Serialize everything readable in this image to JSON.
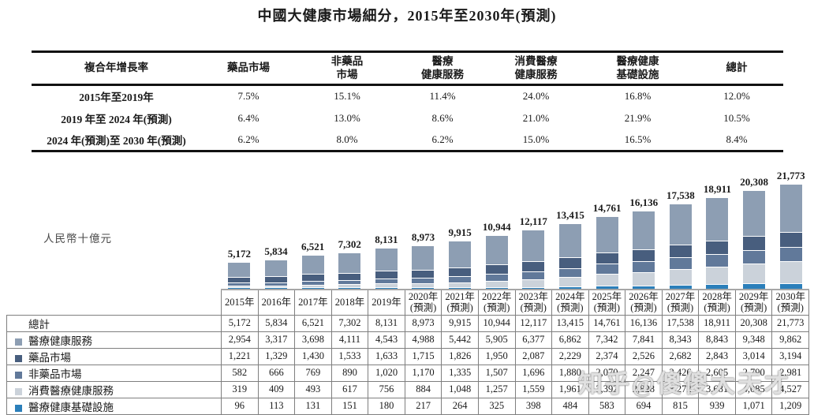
{
  "title": "中國大健康市場細分，2015年至2030年(預測)",
  "watermark": "知乎@傻傻大天才",
  "cagr_table": {
    "headers": [
      "複合年增長率",
      "藥品市場",
      "非藥品\n市場",
      "醫療\n健康服務",
      "消費醫療\n健康服務",
      "醫療健康\n基礎設施",
      "總計"
    ],
    "rows": [
      {
        "label": "2015年至2019年",
        "values": [
          "7.5%",
          "15.1%",
          "11.4%",
          "24.0%",
          "16.8%",
          "12.0%"
        ]
      },
      {
        "label": "2019 年至 2024 年(預測)",
        "values": [
          "6.4%",
          "13.0%",
          "8.6%",
          "21.0%",
          "21.9%",
          "10.5%"
        ]
      },
      {
        "label": "2024 年(預測)至 2030 年(預測)",
        "values": [
          "6.2%",
          "8.0%",
          "6.2%",
          "15.0%",
          "16.5%",
          "8.4%"
        ]
      }
    ]
  },
  "chart_data": {
    "type": "bar",
    "stacked": true,
    "unit_label": "人民幣十億元",
    "total_label": "總計",
    "categories": [
      "2015年",
      "2016年",
      "2017年",
      "2018年",
      "2019年",
      "2020年\n(預測)",
      "2021年\n(預測)",
      "2022年\n(預測)",
      "2023年\n(預測)",
      "2024年\n(預測)",
      "2025年\n(預測)",
      "2026年\n(預測)",
      "2027年\n(預測)",
      "2028年\n(預測)",
      "2029年\n(預測)",
      "2030年\n(預測)"
    ],
    "totals": [
      5172,
      5834,
      6521,
      7302,
      8131,
      8973,
      9915,
      10944,
      12117,
      13415,
      14761,
      16136,
      17538,
      18911,
      20308,
      21773
    ],
    "series": [
      {
        "name": "醫療健康服務",
        "color": "#8d9eb3",
        "values": [
          2954,
          3317,
          3698,
          4111,
          4543,
          4988,
          5442,
          5905,
          6377,
          6862,
          7342,
          7841,
          8343,
          8843,
          9348,
          9862
        ]
      },
      {
        "name": "藥品市場",
        "color": "#485e7e",
        "values": [
          1221,
          1329,
          1430,
          1533,
          1633,
          1715,
          1826,
          1950,
          2087,
          2229,
          2374,
          2526,
          2682,
          2843,
          3014,
          3194
        ]
      },
      {
        "name": "非藥品市場",
        "color": "#61799a",
        "values": [
          582,
          666,
          769,
          890,
          1020,
          1170,
          1335,
          1507,
          1696,
          1880,
          2070,
          2247,
          2426,
          2605,
          2790,
          2981
        ]
      },
      {
        "name": "消費醫療健康服務",
        "color": "#cbd2da",
        "values": [
          319,
          409,
          493,
          617,
          756,
          884,
          1048,
          1257,
          1559,
          1961,
          2392,
          2828,
          3272,
          3681,
          4085,
          4527
        ]
      },
      {
        "name": "醫療健康基礎設施",
        "color": "#2b7fba",
        "values": [
          96,
          113,
          131,
          151,
          180,
          217,
          264,
          325,
          398,
          484,
          583,
          694,
          815,
          939,
          1071,
          1209
        ]
      }
    ],
    "axis_note": "values in RMB billions; x axis years 2015-2030, years 2020+ are forecast (預測)",
    "legend_position": "table-left-column",
    "grid": false
  }
}
